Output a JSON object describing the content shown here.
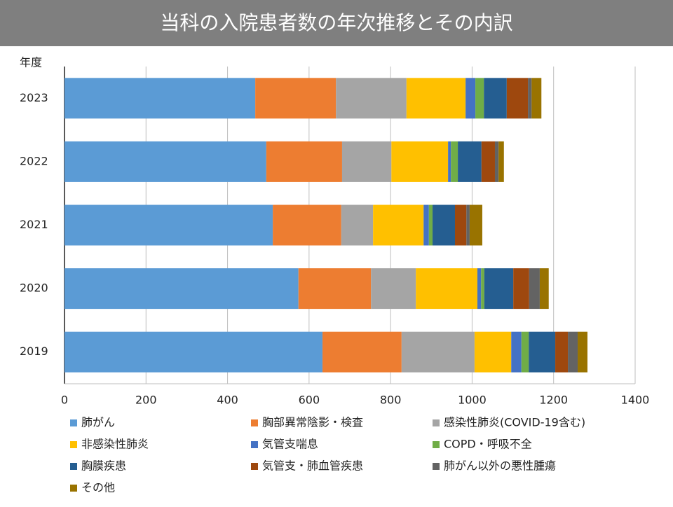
{
  "chart_data": {
    "type": "stacked-bar-horizontal",
    "title": "当科の入院患者数の年次推移とその内訳",
    "y_label": "年度",
    "categories": [
      "2023",
      "2022",
      "2021",
      "2020",
      "2019"
    ],
    "series": [
      {
        "name": "肺がん",
        "color": "#5b9bd5",
        "values": [
          468,
          495,
          511,
          574,
          633
        ]
      },
      {
        "name": "胸部異常陰影・検査",
        "color": "#ed7d31",
        "values": [
          198,
          186,
          168,
          178,
          194
        ]
      },
      {
        "name": "感染性肺炎(COVID-19含む)",
        "color": "#a5a5a5",
        "values": [
          173,
          121,
          78,
          110,
          179
        ]
      },
      {
        "name": "非感染性肺炎",
        "color": "#ffc000",
        "values": [
          145,
          139,
          124,
          151,
          90
        ]
      },
      {
        "name": "気管支喘息",
        "color": "#4472c4",
        "values": [
          24,
          7,
          13,
          9,
          25
        ]
      },
      {
        "name": "COPD・呼吸不全",
        "color": "#70ad47",
        "values": [
          21,
          17,
          9,
          8,
          18
        ]
      },
      {
        "name": "胸膜疾患",
        "color": "#255e91",
        "values": [
          56,
          58,
          55,
          71,
          65
        ]
      },
      {
        "name": "気管支・肺血管疾患",
        "color": "#9e480e",
        "values": [
          52,
          33,
          28,
          39,
          31
        ]
      },
      {
        "name": "肺がん以外の悪性腫瘍",
        "color": "#636363",
        "values": [
          9,
          9,
          8,
          26,
          24
        ]
      },
      {
        "name": "その他",
        "color": "#997300",
        "values": [
          24,
          13,
          31,
          22,
          24
        ]
      }
    ],
    "xlim": [
      0,
      1400
    ],
    "xticks": [
      0,
      200,
      400,
      600,
      800,
      1000,
      1200,
      1400
    ],
    "grid": true
  }
}
